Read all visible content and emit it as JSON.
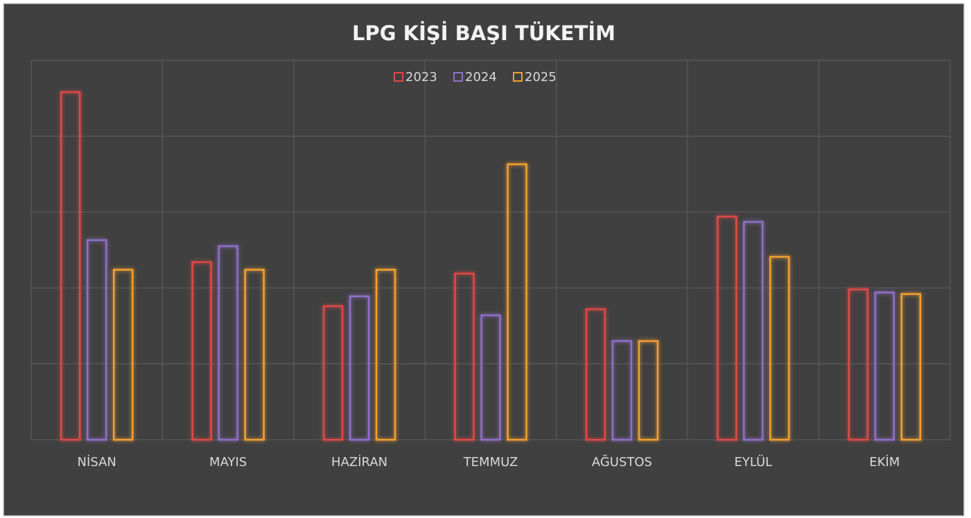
{
  "chart_data": {
    "type": "bar",
    "title": "LPG KİŞİ BAŞI TÜKETİM",
    "categories": [
      "NİSAN",
      "MAYIS",
      "HAZİRAN",
      "TEMMUZ",
      "AĞUSTOS",
      "EYLÜL",
      "EKİM"
    ],
    "series": [
      {
        "name": "2023",
        "color": "#e04848",
        "values": [
          4.58,
          2.34,
          1.76,
          2.19,
          1.72,
          2.94,
          1.98
        ]
      },
      {
        "name": "2024",
        "color": "#9070c8",
        "values": [
          2.63,
          2.55,
          1.89,
          1.64,
          1.3,
          2.87,
          1.94
        ]
      },
      {
        "name": "2025",
        "color": "#f5a030",
        "values": [
          2.24,
          2.24,
          2.24,
          3.63,
          1.3,
          2.41,
          1.92
        ]
      }
    ],
    "ylim": [
      0,
      5
    ],
    "yticks": [
      0,
      1,
      2,
      3,
      4,
      5
    ],
    "grid": true,
    "legend": "top"
  }
}
